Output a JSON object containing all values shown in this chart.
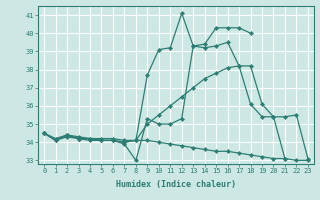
{
  "title": "",
  "xlabel": "Humidex (Indice chaleur)",
  "ylabel": "",
  "bg_color": "#cde8e4",
  "grid_color": "#ffffff",
  "line_color": "#2d7d74",
  "xlim": [
    -0.5,
    23.5
  ],
  "ylim": [
    32.8,
    41.5
  ],
  "yticks": [
    33,
    34,
    35,
    36,
    37,
    38,
    39,
    40,
    41
  ],
  "xticks": [
    0,
    1,
    2,
    3,
    4,
    5,
    6,
    7,
    8,
    9,
    10,
    11,
    12,
    13,
    14,
    15,
    16,
    17,
    18,
    19,
    20,
    21,
    22,
    23
  ],
  "series": [
    [
      34.5,
      34.1,
      34.3,
      34.2,
      34.1,
      34.1,
      34.1,
      33.9,
      33.0,
      35.3,
      35.0,
      35.0,
      35.3,
      39.3,
      39.2,
      39.3,
      39.5,
      38.2,
      36.1,
      35.4,
      35.4,
      33.1,
      null,
      null
    ],
    [
      34.5,
      34.1,
      34.4,
      34.2,
      34.2,
      34.1,
      34.1,
      34.0,
      34.1,
      37.7,
      39.1,
      39.2,
      41.1,
      39.3,
      39.4,
      40.3,
      40.3,
      40.3,
      40.0,
      null,
      null,
      null,
      null,
      null
    ],
    [
      34.5,
      34.1,
      34.4,
      34.2,
      34.2,
      34.1,
      34.1,
      34.0,
      34.1,
      35.0,
      35.5,
      36.0,
      36.5,
      37.0,
      37.5,
      37.8,
      38.1,
      38.2,
      38.2,
      36.1,
      35.4,
      35.4,
      35.5,
      33.1
    ],
    [
      34.5,
      34.2,
      34.4,
      34.3,
      34.2,
      34.2,
      34.2,
      34.1,
      34.1,
      34.1,
      34.0,
      33.9,
      33.8,
      33.7,
      33.6,
      33.5,
      33.5,
      33.4,
      33.3,
      33.2,
      33.1,
      33.1,
      33.0,
      33.0
    ]
  ],
  "marker_series": [
    0,
    1,
    2,
    3
  ],
  "marker_indices": [
    [
      0,
      1,
      2,
      3,
      4,
      5,
      6,
      7,
      8,
      9,
      10,
      11,
      12,
      13,
      14,
      15,
      16,
      17,
      18,
      19,
      20,
      21
    ],
    [
      0,
      1,
      2,
      3,
      4,
      5,
      6,
      7,
      8,
      9,
      10,
      11,
      12,
      13,
      14,
      15,
      16,
      17,
      18
    ],
    [
      0,
      1,
      2,
      3,
      4,
      5,
      6,
      7,
      8,
      9,
      10,
      11,
      12,
      13,
      14,
      15,
      16,
      17,
      18,
      19,
      20,
      21,
      22,
      23
    ],
    [
      0,
      1,
      2,
      3,
      4,
      5,
      6,
      7,
      8,
      9,
      10,
      11,
      12,
      13,
      14,
      15,
      16,
      17,
      18,
      19,
      20,
      21,
      22,
      23
    ]
  ]
}
